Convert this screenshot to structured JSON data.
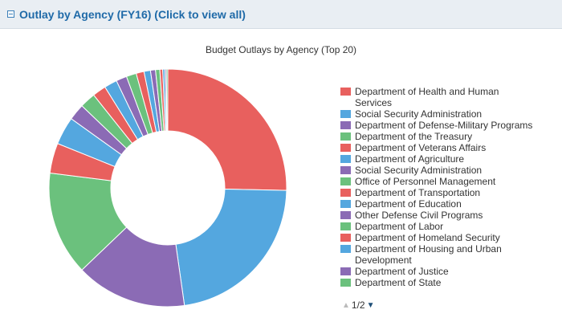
{
  "header": {
    "title": "Outlay by Agency (FY16) (Click to view all)"
  },
  "colors": {
    "red": "#e8605e",
    "blue": "#54a7df",
    "purple": "#8b6bb5",
    "green": "#6bc17d"
  },
  "chart_data": {
    "type": "pie",
    "title": "Budget Outlays by Agency (Top 20)",
    "donut": true,
    "legend_position": "right",
    "series": [
      {
        "name": "Department of Health and Human Services",
        "value": 26.0,
        "color": "#e8605e"
      },
      {
        "name": "Social Security Administration",
        "value": 23.0,
        "color": "#54a7df"
      },
      {
        "name": "Department of Defense-Military Programs",
        "value": 15.5,
        "color": "#8b6bb5"
      },
      {
        "name": "Department of the Treasury",
        "value": 14.5,
        "color": "#6bc17d"
      },
      {
        "name": "Department of Veterans Affairs",
        "value": 4.2,
        "color": "#e8605e"
      },
      {
        "name": "Department of Agriculture",
        "value": 3.9,
        "color": "#54a7df"
      },
      {
        "name": "Social Security Administration",
        "value": 2.3,
        "color": "#8b6bb5"
      },
      {
        "name": "Office of Personnel Management",
        "value": 2.2,
        "color": "#6bc17d"
      },
      {
        "name": "Department of Transportation",
        "value": 1.9,
        "color": "#e8605e"
      },
      {
        "name": "Department of Education",
        "value": 1.8,
        "color": "#54a7df"
      },
      {
        "name": "Other Defense Civil Programs",
        "value": 1.5,
        "color": "#8b6bb5"
      },
      {
        "name": "Department of Labor",
        "value": 1.4,
        "color": "#6bc17d"
      },
      {
        "name": "Department of Homeland Security",
        "value": 1.1,
        "color": "#e8605e"
      },
      {
        "name": "Department of Housing and Urban Development",
        "value": 0.9,
        "color": "#54a7df"
      },
      {
        "name": "Department of Justice",
        "value": 0.7,
        "color": "#8b6bb5"
      },
      {
        "name": "Department of State",
        "value": 0.6,
        "color": "#6bc17d"
      },
      {
        "name": "",
        "value": 0.4,
        "color": "#e8605e"
      },
      {
        "name": "",
        "value": 0.3,
        "color": "#54a7df"
      },
      {
        "name": "",
        "value": 0.2,
        "color": "#8b6bb5"
      },
      {
        "name": "",
        "value": 0.2,
        "color": "#6bc17d"
      }
    ]
  },
  "legend_nav": {
    "up_icon": "triangle-up-icon",
    "page": "1/2",
    "down_icon": "triangle-down-icon"
  }
}
